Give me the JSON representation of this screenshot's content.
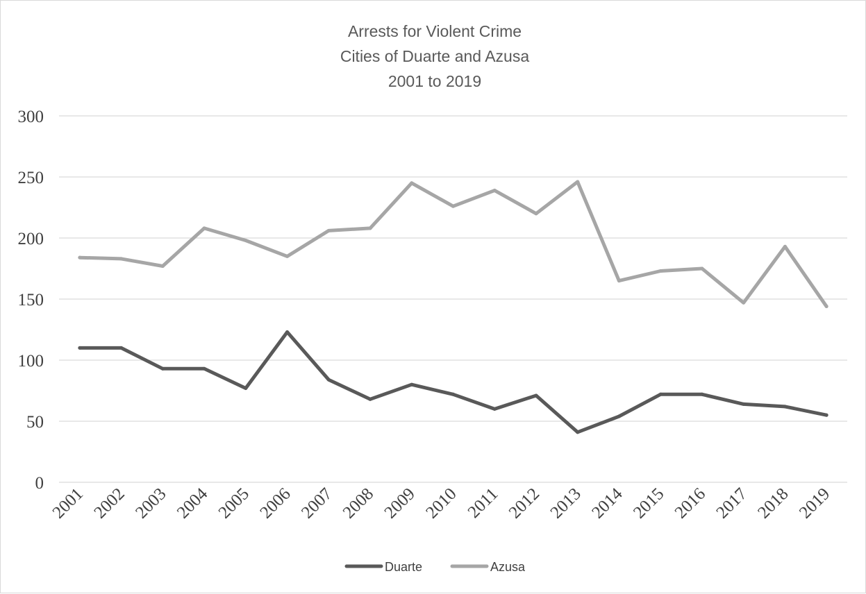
{
  "chart_data": {
    "type": "line",
    "title_lines": [
      "Arrests for Violent Crime",
      "Cities of Duarte and Azusa",
      "2001 to 2019"
    ],
    "xlabel": "",
    "ylabel": "",
    "categories": [
      "2001",
      "2002",
      "2003",
      "2004",
      "2005",
      "2006",
      "2007",
      "2008",
      "2009",
      "2010",
      "2011",
      "2012",
      "2013",
      "2014",
      "2015",
      "2016",
      "2017",
      "2018",
      "2019"
    ],
    "y_ticks": [
      "0",
      "50",
      "100",
      "150",
      "200",
      "250",
      "300"
    ],
    "ylim": [
      0,
      300
    ],
    "grid": true,
    "legend_position": "bottom",
    "series": [
      {
        "name": "Duarte",
        "color": "#595959",
        "values": [
          110,
          110,
          93,
          93,
          77,
          123,
          84,
          68,
          80,
          72,
          60,
          71,
          41,
          54,
          72,
          72,
          64,
          62,
          55
        ]
      },
      {
        "name": "Azusa",
        "color": "#a6a6a6",
        "values": [
          184,
          183,
          177,
          208,
          198,
          185,
          206,
          208,
          245,
          226,
          239,
          220,
          246,
          165,
          173,
          175,
          147,
          193,
          144
        ]
      }
    ]
  }
}
